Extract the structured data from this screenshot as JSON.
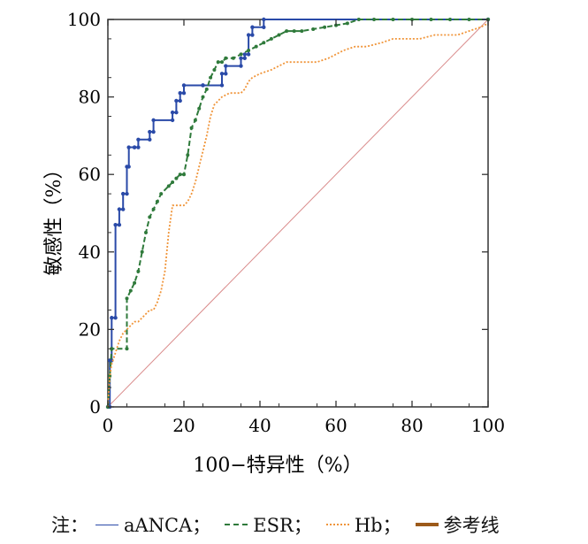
{
  "chart_data": {
    "type": "line",
    "title": "",
    "xlabel": "100−特异性（%）",
    "ylabel": "敏感性（%）",
    "xlim": [
      0,
      100
    ],
    "ylim": [
      0,
      100
    ],
    "xticks": [
      "0",
      "20",
      "40",
      "60",
      "80",
      "100"
    ],
    "yticks": [
      "0",
      "20",
      "40",
      "60",
      "80",
      "100"
    ],
    "grid": false,
    "series": [
      {
        "name": "aANCA",
        "color": "#2a4aa8",
        "style": "solid",
        "x": [
          0,
          0.5,
          0.5,
          1,
          1,
          2,
          2,
          3,
          3,
          4,
          4,
          5,
          5,
          5.5,
          5.5,
          7,
          7,
          8,
          8,
          11,
          11,
          12,
          12,
          17,
          17,
          18,
          18,
          19,
          19,
          20,
          20,
          25,
          25,
          30,
          30,
          31,
          31,
          35,
          35,
          36,
          36,
          37,
          37,
          38,
          38,
          41,
          41,
          100
        ],
        "y": [
          0,
          0,
          12,
          12,
          23,
          23,
          47,
          47,
          51,
          51,
          55,
          55,
          62,
          62,
          67,
          67,
          67,
          67,
          69,
          69,
          71,
          71,
          74,
          74,
          76,
          76,
          79,
          79,
          81,
          81,
          83,
          83,
          83,
          83,
          86,
          86,
          88,
          88,
          90,
          90,
          91,
          91,
          96,
          96,
          98,
          98,
          100,
          100
        ]
      },
      {
        "name": "ESR",
        "color": "#2f7a3b",
        "style": "dashed",
        "x": [
          0,
          0.5,
          1,
          1,
          5,
          5,
          6,
          7,
          8,
          9,
          10,
          11,
          12,
          13,
          14,
          16,
          17,
          18,
          19,
          20,
          21,
          22,
          23,
          24,
          25,
          26,
          27,
          28,
          29,
          30,
          31,
          33,
          35,
          37,
          39,
          41,
          43,
          45,
          47,
          49,
          51,
          54,
          57,
          60,
          63,
          66,
          70,
          75,
          80,
          85,
          90,
          95,
          100
        ],
        "y": [
          0,
          8,
          15,
          15,
          15,
          28,
          30,
          32,
          35,
          40,
          45,
          49,
          51,
          53,
          55,
          57,
          58,
          59,
          60,
          60,
          65,
          72,
          74,
          77,
          80,
          82,
          85,
          87,
          89,
          89,
          90,
          90,
          91,
          92,
          93,
          94,
          95,
          96,
          97,
          97,
          97,
          97.5,
          98,
          98.5,
          99,
          100,
          100,
          100,
          100,
          100,
          100,
          100,
          100
        ]
      },
      {
        "name": "Hb",
        "color": "#f0953a",
        "style": "dotted",
        "x": [
          0,
          0.5,
          1,
          1,
          2,
          3,
          4,
          5,
          6,
          7,
          8,
          9,
          10,
          11,
          12,
          13,
          14,
          15,
          16,
          17,
          18,
          19,
          20,
          21,
          22,
          23,
          24,
          25,
          26,
          27,
          28,
          30,
          32,
          34,
          35,
          36,
          37,
          38,
          40,
          43,
          45,
          47,
          50,
          53,
          55,
          58,
          60,
          62,
          65,
          68,
          72,
          75,
          78,
          82,
          86,
          90,
          92,
          95,
          98,
          100
        ],
        "y": [
          0,
          8,
          11,
          11,
          14,
          17,
          19,
          20,
          21,
          22,
          22,
          23,
          24,
          25,
          25,
          27,
          30,
          35,
          45,
          52,
          52,
          52,
          52,
          53,
          55,
          58,
          62,
          66,
          70,
          75,
          78,
          80,
          81,
          81,
          81,
          82,
          84,
          85,
          86,
          87,
          88,
          89,
          89,
          89,
          89,
          90,
          91,
          92,
          93,
          93,
          94,
          95,
          95,
          95,
          96,
          96,
          96,
          97,
          98,
          99
        ]
      },
      {
        "name": "参考线",
        "color": "#9c5a1a",
        "style": "solid",
        "x": [
          0,
          100
        ],
        "y": [
          0,
          100
        ]
      }
    ]
  },
  "legend": {
    "prefix": "注：",
    "items": [
      {
        "label": "aANCA；",
        "color": "#2a4aa8",
        "style": "solid"
      },
      {
        "label": "ESR；",
        "color": "#2f7a3b",
        "style": "dashed"
      },
      {
        "label": "Hb；",
        "color": "#f0953a",
        "style": "dotted"
      },
      {
        "label": "参考线",
        "color": "#9c5a1a",
        "style": "thick"
      }
    ]
  }
}
